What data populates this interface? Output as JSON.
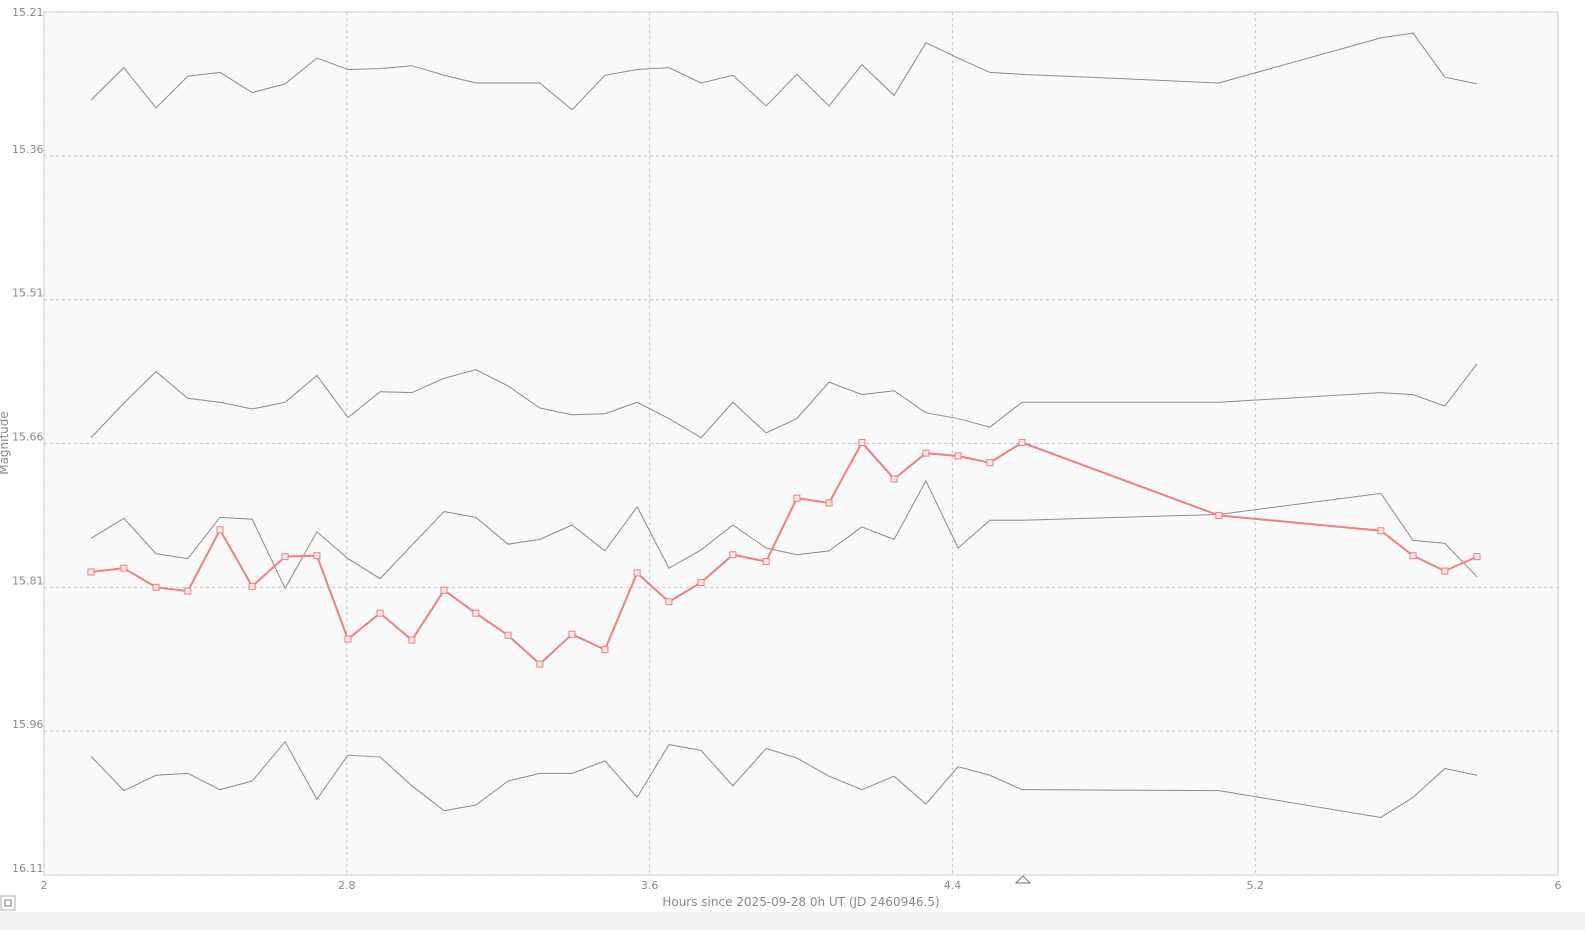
{
  "chart_data": {
    "type": "line",
    "x_label": "Hours since 2025-09-28 0h UT (JD 2460946.5)",
    "y_label": "Magnitude",
    "xlim": [
      2,
      6
    ],
    "xticks": [
      2,
      2.8,
      3.6,
      4.4,
      5.2,
      6
    ],
    "ylim": [
      15.21,
      16.11
    ],
    "yticks": [
      15.21,
      15.36,
      15.51,
      15.66,
      15.81,
      15.96,
      16.11
    ],
    "y_inverted": true,
    "grid": true,
    "x": [
      2.124,
      2.211,
      2.296,
      2.38,
      2.465,
      2.55,
      2.637,
      2.721,
      2.803,
      2.888,
      2.972,
      3.057,
      3.141,
      3.226,
      3.31,
      3.395,
      3.482,
      3.567,
      3.651,
      3.736,
      3.82,
      3.908,
      3.989,
      4.074,
      4.161,
      4.246,
      4.33,
      4.415,
      4.499,
      4.584,
      5.104,
      5.532,
      5.617,
      5.701,
      5.786
    ],
    "series": [
      {
        "color": "#8c8c8c",
        "markers": false,
        "values": [
          15.302,
          15.268,
          15.31,
          15.277,
          15.273,
          15.294,
          15.285,
          15.258,
          15.27,
          15.269,
          15.266,
          15.276,
          15.284,
          15.284,
          15.284,
          15.312,
          15.276,
          15.27,
          15.268,
          15.284,
          15.276,
          15.308,
          15.275,
          15.308,
          15.265,
          15.297,
          15.242,
          15.258,
          15.273,
          15.275,
          15.284,
          15.237,
          15.232,
          15.278,
          15.285
        ]
      },
      {
        "color": "#8c8c8c",
        "markers": false,
        "values": [
          15.654,
          15.618,
          15.585,
          15.613,
          15.617,
          15.624,
          15.617,
          15.589,
          15.633,
          15.606,
          15.607,
          15.592,
          15.583,
          15.6,
          15.623,
          15.63,
          15.629,
          15.617,
          15.634,
          15.654,
          15.617,
          15.649,
          15.634,
          15.596,
          15.609,
          15.605,
          15.628,
          15.634,
          15.643,
          15.617,
          15.617,
          15.607,
          15.609,
          15.621,
          15.577
        ]
      },
      {
        "color": "#8c8c8c",
        "markers": false,
        "values": [
          15.759,
          15.738,
          15.775,
          15.78,
          15.737,
          15.739,
          15.811,
          15.752,
          15.78,
          15.801,
          15.766,
          15.731,
          15.737,
          15.765,
          15.76,
          15.745,
          15.772,
          15.726,
          15.79,
          15.771,
          15.745,
          15.769,
          15.776,
          15.772,
          15.747,
          15.76,
          15.699,
          15.769,
          15.74,
          15.74,
          15.734,
          15.712,
          15.761,
          15.764,
          15.799
        ]
      },
      {
        "color": "#f08080",
        "markers": true,
        "values": [
          15.794,
          15.79,
          15.81,
          15.814,
          15.75,
          15.809,
          15.778,
          15.777,
          15.864,
          15.837,
          15.865,
          15.813,
          15.837,
          15.86,
          15.89,
          15.859,
          15.875,
          15.795,
          15.825,
          15.805,
          15.776,
          15.783,
          15.717,
          15.722,
          15.659,
          15.697,
          15.67,
          15.673,
          15.68,
          15.659,
          15.735,
          15.751,
          15.777,
          15.793,
          15.778
        ]
      },
      {
        "color": "#8c8c8c",
        "markers": false,
        "values": [
          15.986,
          16.022,
          16.006,
          16.004,
          16.021,
          16.012,
          15.971,
          16.031,
          15.985,
          15.987,
          16.017,
          16.043,
          16.037,
          16.012,
          16.004,
          16.004,
          15.991,
          16.029,
          15.974,
          15.98,
          16.017,
          15.978,
          15.988,
          16.007,
          16.021,
          16.007,
          16.036,
          15.997,
          16.006,
          16.021,
          16.022,
          16.05,
          16.029,
          15.999,
          16.006
        ]
      }
    ]
  }
}
